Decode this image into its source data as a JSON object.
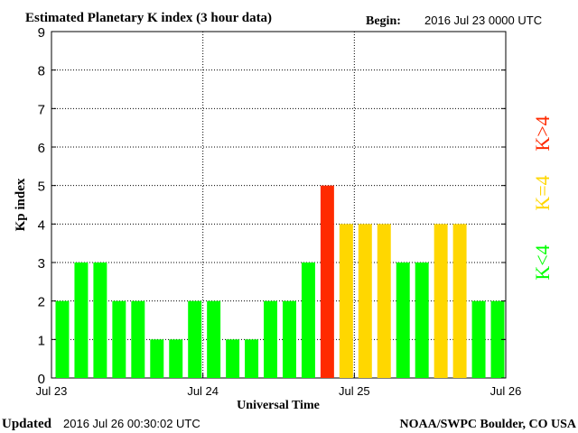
{
  "header": {
    "title": "Estimated Planetary K index (3 hour data)",
    "begin_label": "Begin:",
    "begin_value": "2016 Jul 23 0000 UTC"
  },
  "footer": {
    "updated_label": "Updated",
    "updated_value": "2016 Jul 26 00:30:02 UTC",
    "source": "NOAA/SWPC Boulder, CO USA"
  },
  "legend": {
    "items": [
      {
        "label": "K<4",
        "color": "#00ff00"
      },
      {
        "label": "K=4",
        "color": "#ffd700"
      },
      {
        "label": "K>4",
        "color": "#ff2a00"
      }
    ]
  },
  "chart_data": {
    "type": "bar",
    "title": "Estimated Planetary K index (3 hour data)",
    "xlabel": "Universal Time",
    "ylabel": "Kp index",
    "ylim": [
      0,
      9
    ],
    "yticks": [
      0,
      1,
      2,
      3,
      4,
      5,
      6,
      7,
      8,
      9
    ],
    "day_labels": [
      "Jul 23",
      "Jul 24",
      "Jul 25",
      "Jul 26"
    ],
    "values": [
      2,
      3,
      3,
      2,
      2,
      1,
      1,
      2,
      2,
      1,
      1,
      2,
      2,
      3,
      5,
      4,
      4,
      4,
      3,
      3,
      4,
      4,
      2,
      2
    ],
    "colors": {
      "low": "#00ff00",
      "equal": "#ffd700",
      "high": "#ff2a00"
    },
    "grid": true
  }
}
